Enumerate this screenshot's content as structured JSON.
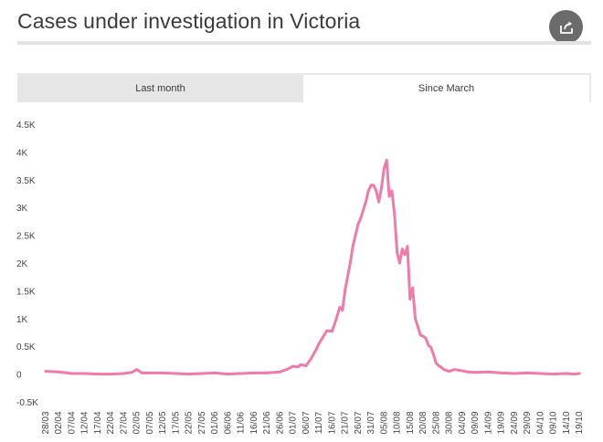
{
  "header": {
    "title": "Cases under investigation in Victoria",
    "share_icon": "share-icon"
  },
  "tabs": [
    {
      "label": "Last month",
      "active": false
    },
    {
      "label": "Since March",
      "active": true
    }
  ],
  "chart_data": {
    "type": "line",
    "title": "",
    "xlabel": "",
    "ylabel": "",
    "ylim": [
      -500,
      4500
    ],
    "yticks": [
      {
        "value": 4500,
        "label": "4.5K"
      },
      {
        "value": 4000,
        "label": "4K"
      },
      {
        "value": 3500,
        "label": "3.5K"
      },
      {
        "value": 3000,
        "label": "3K"
      },
      {
        "value": 2500,
        "label": "2.5K"
      },
      {
        "value": 2000,
        "label": "2K"
      },
      {
        "value": 1500,
        "label": "1.5K"
      },
      {
        "value": 1000,
        "label": "1K"
      },
      {
        "value": 500,
        "label": "0.5K"
      },
      {
        "value": 0,
        "label": "0"
      },
      {
        "value": -500,
        "label": "-0.5K"
      }
    ],
    "xticks": [
      "28/03",
      "02/04",
      "07/04",
      "12/04",
      "17/04",
      "22/04",
      "27/04",
      "02/05",
      "07/05",
      "12/05",
      "17/05",
      "22/05",
      "27/05",
      "01/06",
      "06/06",
      "11/06",
      "16/06",
      "21/06",
      "26/06",
      "01/07",
      "06/07",
      "11/07",
      "16/07",
      "21/07",
      "26/07",
      "31/07",
      "05/08",
      "10/08",
      "15/08",
      "20/08",
      "25/08",
      "30/08",
      "04/09",
      "09/09",
      "14/09",
      "19/09",
      "24/09",
      "29/09",
      "04/10",
      "09/10",
      "14/10",
      "19/10"
    ],
    "grid": false,
    "legend": "none",
    "series": [
      {
        "color": "#f07aa9",
        "x": [
          "28/03",
          "02/04",
          "07/04",
          "12/04",
          "17/04",
          "22/04",
          "27/04",
          "30/04",
          "02/05",
          "04/05",
          "07/05",
          "12/05",
          "17/05",
          "22/05",
          "27/05",
          "01/06",
          "06/06",
          "11/06",
          "16/06",
          "21/06",
          "26/06",
          "29/06",
          "01/07",
          "03/07",
          "04/07",
          "06/07",
          "08/07",
          "10/07",
          "11/07",
          "13/07",
          "14/07",
          "16/07",
          "17/07",
          "18/07",
          "19/07",
          "20/07",
          "21/07",
          "23/07",
          "24/07",
          "26/07",
          "27/07",
          "29/07",
          "30/07",
          "31/07",
          "01/08",
          "02/08",
          "03/08",
          "04/08",
          "05/08",
          "06/08",
          "07/08",
          "08/08",
          "09/08",
          "10/08",
          "11/08",
          "12/08",
          "13/08",
          "14/08",
          "15/08",
          "16/08",
          "17/08",
          "18/08",
          "19/08",
          "20/08",
          "21/08",
          "22/08",
          "23/08",
          "24/08",
          "25/08",
          "26/08",
          "27/08",
          "28/08",
          "30/08",
          "01/09",
          "04/09",
          "06/09",
          "09/09",
          "14/09",
          "19/09",
          "24/09",
          "29/09",
          "04/10",
          "09/10",
          "14/10",
          "17/10",
          "19/10"
        ],
        "values": [
          50,
          40,
          10,
          10,
          0,
          0,
          10,
          30,
          80,
          20,
          20,
          20,
          10,
          0,
          10,
          20,
          0,
          10,
          20,
          20,
          40,
          90,
          140,
          130,
          170,
          150,
          280,
          450,
          550,
          700,
          780,
          770,
          900,
          1050,
          1200,
          1150,
          1500,
          2000,
          2300,
          2700,
          2800,
          3100,
          3300,
          3400,
          3400,
          3300,
          3100,
          3350,
          3700,
          3850,
          3200,
          3300,
          2900,
          2200,
          2000,
          2250,
          2150,
          2300,
          1350,
          1550,
          1000,
          850,
          700,
          680,
          650,
          520,
          480,
          350,
          200,
          150,
          120,
          80,
          50,
          80,
          60,
          40,
          30,
          40,
          20,
          10,
          20,
          10,
          0,
          10,
          0,
          10
        ]
      }
    ]
  }
}
